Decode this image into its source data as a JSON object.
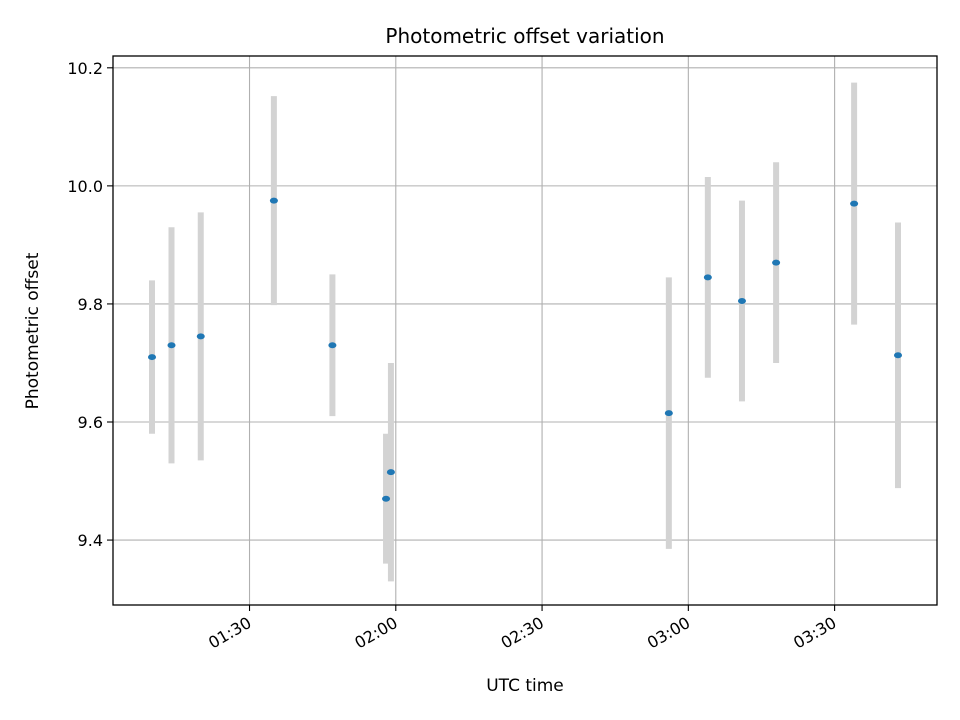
{
  "chart_data": {
    "type": "scatter",
    "title": "Photometric offset variation",
    "xlabel": "UTC time",
    "ylabel": "Photometric offset",
    "x_ticks": [
      "01:30",
      "02:00",
      "02:30",
      "03:00",
      "03:30"
    ],
    "y_ticks": [
      "9.4",
      "9.6",
      "9.8",
      "10.0",
      "10.2"
    ],
    "xlim": [
      "01:02",
      "03:51"
    ],
    "ylim": [
      9.29,
      10.22
    ],
    "grid": true,
    "colors": {
      "point": "#1f77b4",
      "errorbar": "#d3d3d3",
      "grid": "#b0b0b0"
    },
    "points": [
      {
        "x": "01:10",
        "y": 9.71,
        "err": 0.13
      },
      {
        "x": "01:14",
        "y": 9.73,
        "err": 0.2
      },
      {
        "x": "01:20",
        "y": 9.745,
        "err": 0.21
      },
      {
        "x": "01:35",
        "y": 9.975,
        "err": 0.177
      },
      {
        "x": "01:47",
        "y": 9.73,
        "err": 0.12
      },
      {
        "x": "01:58",
        "y": 9.47,
        "err": 0.11
      },
      {
        "x": "01:59",
        "y": 9.515,
        "err": 0.185
      },
      {
        "x": "02:56",
        "y": 9.615,
        "err": 0.23
      },
      {
        "x": "03:04",
        "y": 9.845,
        "err": 0.17
      },
      {
        "x": "03:11",
        "y": 9.805,
        "err": 0.17
      },
      {
        "x": "03:18",
        "y": 9.87,
        "err": 0.17
      },
      {
        "x": "03:34",
        "y": 9.97,
        "err": 0.205
      },
      {
        "x": "03:43",
        "y": 9.713,
        "err": 0.225
      }
    ]
  }
}
